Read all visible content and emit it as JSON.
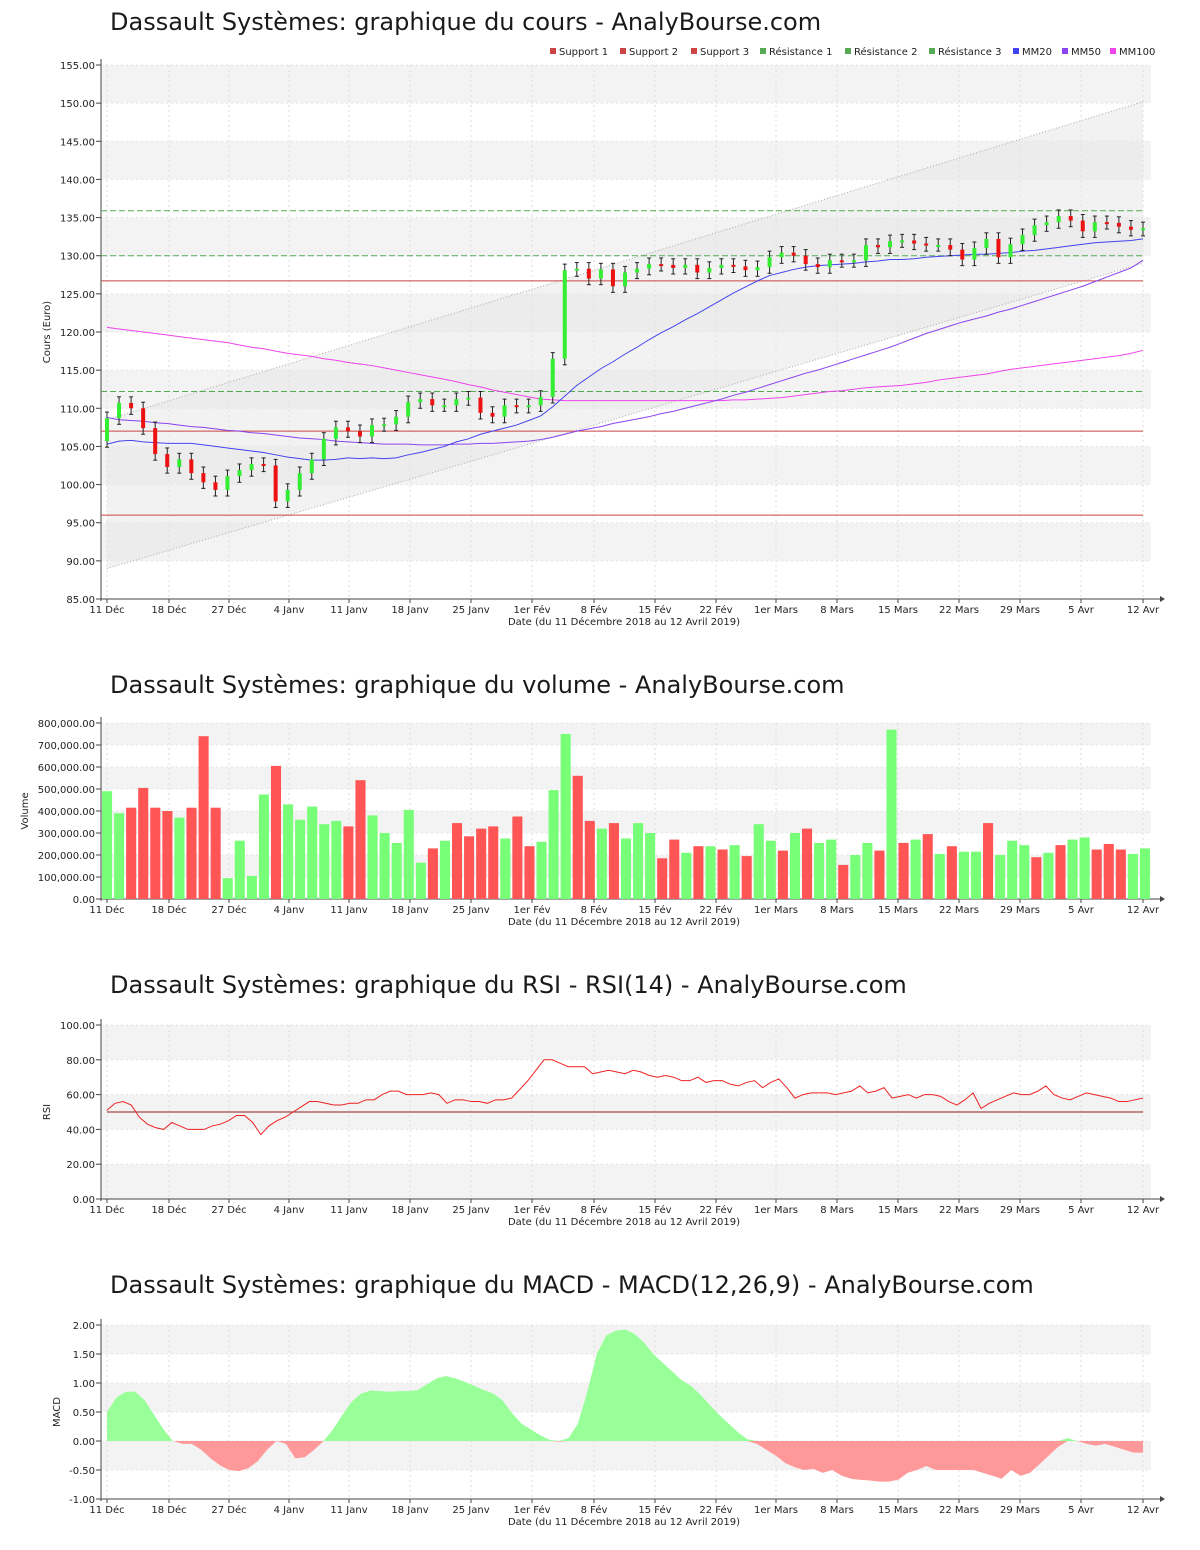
{
  "x_ticks": [
    "11 Déc",
    "18 Déc",
    "27 Déc",
    "4 Janv",
    "11 Janv",
    "18 Janv",
    "25 Janv",
    "1er Fév",
    "8 Fév",
    "15 Fév",
    "22 Fév",
    "1er Mars",
    "8 Mars",
    "15 Mars",
    "22 Mars",
    "29 Mars",
    "5 Avr",
    "12 Avr"
  ],
  "xlabel": "Date (du 11 Décembre 2018 au 12 Avril 2019)",
  "colors": {
    "up": "#33ee33",
    "down": "#ee1111",
    "vol_up": "#77ff77",
    "vol_down": "#ff5555",
    "support": "#cc4444",
    "resistance": "#55aa55",
    "mm20": "#4444ee",
    "mm50": "#8844ee",
    "mm100": "#ee44ee",
    "rsi": "#ee2222",
    "macd_pos": "#99ff99",
    "macd_neg": "#ff9999"
  },
  "chart_data": [
    {
      "type": "candlestick",
      "title": "Dassault Systèmes: graphique du cours - AnalyBourse.com",
      "ylabel": "Cours (Euro)",
      "ylim": [
        85,
        155
      ],
      "y_ticks": [
        "155.00",
        "150.00",
        "145.00",
        "140.00",
        "135.00",
        "130.00",
        "125.00",
        "120.00",
        "115.00",
        "110.00",
        "105.00",
        "100.00",
        "95.00",
        "90.00",
        "85.00"
      ],
      "legend": [
        "Support 1",
        "Support 2",
        "Support 3",
        "Résistance 1",
        "Résistance 2",
        "Résistance 3",
        "MM20",
        "MM50",
        "MM100"
      ],
      "legend_position": "top-right",
      "levels": {
        "support1": 126.7,
        "support2": 107.0,
        "support3": 96.0,
        "resistance1": 112.2,
        "resistance2": 130.0,
        "resistance3": 135.9
      },
      "channel": {
        "upper": [
          108.5,
          150.2
        ],
        "lower": [
          89.0,
          129.0
        ]
      },
      "close": [
        108.7,
        110.7,
        110.0,
        107.4,
        104.0,
        102.3,
        103.3,
        101.5,
        100.3,
        99.3,
        101.1,
        101.9,
        102.7,
        102.5,
        97.8,
        99.3,
        101.5,
        103.3,
        106.0,
        107.5,
        107.0,
        106.3,
        107.8,
        107.9,
        108.9,
        110.8,
        111.2,
        110.4,
        110.4,
        111.2,
        111.4,
        109.4,
        108.9,
        110.4,
        110.2,
        110.4,
        111.5,
        116.5,
        128.1,
        128.3,
        127.0,
        128.2,
        126.0,
        127.8,
        128.3,
        128.9,
        128.8,
        128.4,
        128.8,
        127.8,
        128.4,
        128.8,
        128.6,
        128.1,
        128.5,
        129.8,
        130.4,
        130.0,
        128.9,
        128.5,
        129.4,
        129.3,
        129.4,
        131.4,
        131.1,
        131.9,
        132.0,
        131.6,
        131.4,
        131.4,
        130.8,
        129.5,
        131.0,
        132.2,
        129.8,
        131.5,
        132.7,
        134.0,
        134.4,
        135.2,
        134.6,
        133.2,
        134.4,
        134.3,
        133.8,
        133.4,
        133.6
      ],
      "mm20": [
        105.3,
        105.7,
        105.8,
        105.6,
        105.5,
        105.4,
        105.4,
        105.4,
        105.2,
        105.0,
        104.8,
        104.6,
        104.4,
        104.2,
        103.9,
        103.6,
        103.4,
        103.2,
        103.2,
        103.3,
        103.5,
        103.4,
        103.5,
        103.4,
        103.5,
        103.9,
        104.2,
        104.6,
        105.0,
        105.6,
        106.0,
        106.6,
        107.0,
        107.4,
        107.8,
        108.4,
        109.0,
        110.2,
        111.6,
        113.0,
        114.1,
        115.2,
        116.1,
        117.1,
        118.0,
        119.0,
        119.9,
        120.7,
        121.6,
        122.4,
        123.3,
        124.2,
        125.1,
        125.9,
        126.7,
        127.4,
        127.8,
        128.2,
        128.5,
        128.7,
        128.8,
        128.9,
        129.0,
        129.2,
        129.3,
        129.5,
        129.5,
        129.6,
        129.8,
        129.9,
        130.0,
        130.1,
        130.2,
        130.2,
        130.3,
        130.4,
        130.6,
        130.7,
        130.9,
        131.1,
        131.3,
        131.5,
        131.7,
        131.8,
        131.9,
        132.0,
        132.2
      ],
      "mm50": [
        108.8,
        108.5,
        108.4,
        108.3,
        108.1,
        108.0,
        107.8,
        107.6,
        107.5,
        107.3,
        107.1,
        107.0,
        106.8,
        106.7,
        106.5,
        106.3,
        106.1,
        106.0,
        105.9,
        105.7,
        105.6,
        105.5,
        105.4,
        105.3,
        105.3,
        105.3,
        105.2,
        105.2,
        105.2,
        105.3,
        105.3,
        105.4,
        105.4,
        105.5,
        105.6,
        105.7,
        105.9,
        106.2,
        106.6,
        107.0,
        107.3,
        107.6,
        108.0,
        108.3,
        108.6,
        108.9,
        109.3,
        109.6,
        110.0,
        110.4,
        110.8,
        111.2,
        111.7,
        112.1,
        112.6,
        113.1,
        113.6,
        114.1,
        114.6,
        115.0,
        115.5,
        116.0,
        116.5,
        117.0,
        117.5,
        118.0,
        118.6,
        119.2,
        119.8,
        120.3,
        120.8,
        121.3,
        121.7,
        122.1,
        122.6,
        123.0,
        123.5,
        124.0,
        124.5,
        125.0,
        125.5,
        126.0,
        126.6,
        127.2,
        127.8,
        128.4,
        129.4
      ],
      "mm100": [
        120.6,
        120.4,
        120.2,
        120.0,
        119.8,
        119.6,
        119.4,
        119.2,
        119.0,
        118.8,
        118.6,
        118.3,
        118.0,
        117.8,
        117.5,
        117.2,
        117.0,
        116.8,
        116.5,
        116.3,
        116.0,
        115.8,
        115.6,
        115.3,
        115.0,
        114.7,
        114.4,
        114.1,
        113.8,
        113.5,
        113.1,
        112.8,
        112.4,
        112.1,
        111.8,
        111.5,
        111.2,
        111.1,
        111.0,
        111.0,
        111.0,
        111.0,
        111.0,
        111.0,
        111.0,
        111.0,
        111.0,
        111.0,
        111.0,
        111.0,
        111.0,
        111.0,
        111.1,
        111.1,
        111.2,
        111.3,
        111.4,
        111.6,
        111.8,
        112.0,
        112.2,
        112.3,
        112.5,
        112.7,
        112.8,
        112.9,
        113.0,
        113.2,
        113.4,
        113.7,
        113.9,
        114.1,
        114.3,
        114.5,
        114.8,
        115.1,
        115.3,
        115.5,
        115.7,
        115.9,
        116.1,
        116.3,
        116.5,
        116.7,
        116.9,
        117.2,
        117.6
      ]
    },
    {
      "type": "bar",
      "title": "Dassault Systèmes: graphique du volume - AnalyBourse.com",
      "ylabel": "Volume",
      "ylim": [
        0,
        800000
      ],
      "y_ticks": [
        "800,000.00",
        "700,000.00",
        "600,000.00",
        "500,000.00",
        "400,000.00",
        "300,000.00",
        "200,000.00",
        "100,000.00",
        "0.00"
      ],
      "values": [
        490000,
        390000,
        415000,
        505000,
        415000,
        400000,
        370000,
        415000,
        740000,
        415000,
        95000,
        265000,
        105000,
        475000,
        605000,
        430000,
        360000,
        420000,
        340000,
        355000,
        330000,
        540000,
        380000,
        300000,
        255000,
        405000,
        165000,
        230000,
        265000,
        345000,
        285000,
        320000,
        330000,
        275000,
        375000,
        240000,
        260000,
        495000,
        750000,
        560000,
        355000,
        320000,
        345000,
        275000,
        345000,
        300000,
        185000,
        270000,
        210000,
        240000,
        240000,
        225000,
        245000,
        195000,
        340000,
        265000,
        220000,
        300000,
        320000,
        255000,
        270000,
        155000,
        200000,
        255000,
        220000,
        770000,
        255000,
        270000,
        295000,
        205000,
        240000,
        215000,
        215000,
        345000,
        200000,
        265000,
        245000,
        190000,
        210000,
        245000,
        270000,
        280000,
        225000,
        250000,
        225000,
        205000,
        230000
      ],
      "up": [
        1,
        1,
        0,
        0,
        0,
        0,
        1,
        0,
        0,
        0,
        1,
        1,
        1,
        1,
        0,
        1,
        1,
        1,
        1,
        1,
        0,
        0,
        1,
        1,
        1,
        1,
        1,
        0,
        1,
        0,
        0,
        0,
        0,
        1,
        0,
        0,
        1,
        1,
        1,
        0,
        0,
        1,
        0,
        1,
        1,
        1,
        0,
        0,
        1,
        0,
        1,
        0,
        1,
        0,
        1,
        1,
        0,
        1,
        0,
        1,
        1,
        0,
        1,
        1,
        0,
        1,
        0,
        1,
        0,
        1,
        0,
        1,
        1,
        0,
        1,
        1,
        1,
        0,
        1,
        0,
        1,
        1,
        0,
        0,
        0,
        1,
        1
      ]
    },
    {
      "type": "line",
      "title": "Dassault Systèmes: graphique du RSI - RSI(14) - AnalyBourse.com",
      "ylabel": "RSI",
      "ylim": [
        0,
        100
      ],
      "y_ticks": [
        "100.00",
        "80.00",
        "60.00",
        "40.00",
        "20.00",
        "0.00"
      ],
      "reference_line": 50,
      "values": [
        51,
        55,
        56,
        54,
        47,
        43,
        41,
        40,
        44,
        42,
        40,
        40,
        40,
        42,
        43,
        45,
        48,
        48,
        44,
        37,
        42,
        45,
        47,
        50,
        53,
        56,
        56,
        55,
        54,
        54,
        55,
        55,
        57,
        57,
        60,
        62,
        62,
        60,
        60,
        60,
        61,
        60,
        55,
        57,
        57,
        56,
        56,
        55,
        57,
        57,
        58,
        63,
        68,
        74,
        80,
        80,
        78,
        76,
        76,
        76,
        72,
        73,
        74,
        73,
        72,
        74,
        73,
        71,
        70,
        71,
        70,
        68,
        68,
        70,
        67,
        68,
        68,
        66,
        65,
        67,
        68,
        64,
        67,
        69,
        64,
        58,
        60,
        61,
        61,
        61,
        60,
        61,
        62,
        65,
        61,
        62,
        64,
        58,
        59,
        60,
        58,
        60,
        60,
        59,
        56,
        54,
        57,
        61,
        52,
        55,
        57,
        59,
        61,
        60,
        60,
        62,
        65,
        60,
        58,
        57,
        59,
        61,
        60,
        59,
        58,
        56,
        56,
        57,
        58
      ],
      "series_name": ""
    },
    {
      "type": "area",
      "title": "Dassault Systèmes: graphique du MACD - MACD(12,26,9) - AnalyBourse.com",
      "ylabel": "MACD",
      "ylim": [
        -1,
        2
      ],
      "y_ticks": [
        "2.00",
        "1.50",
        "1.00",
        "0.50",
        "0.00",
        "-0.50",
        "-1.00"
      ],
      "values": [
        0.5,
        0.75,
        0.85,
        0.85,
        0.7,
        0.45,
        0.2,
        0.0,
        -0.05,
        -0.05,
        -0.15,
        -0.3,
        -0.42,
        -0.5,
        -0.52,
        -0.47,
        -0.35,
        -0.15,
        0.0,
        -0.05,
        -0.3,
        -0.28,
        -0.15,
        0.0,
        0.2,
        0.45,
        0.68,
        0.82,
        0.87,
        0.86,
        0.85,
        0.86,
        0.86,
        0.88,
        0.98,
        1.08,
        1.12,
        1.08,
        1.02,
        0.95,
        0.88,
        0.82,
        0.7,
        0.48,
        0.3,
        0.2,
        0.1,
        0.02,
        -0.01,
        0.05,
        0.3,
        0.85,
        1.5,
        1.82,
        1.9,
        1.92,
        1.85,
        1.7,
        1.5,
        1.35,
        1.2,
        1.05,
        0.95,
        0.8,
        0.62,
        0.45,
        0.3,
        0.15,
        0.03,
        -0.05,
        -0.15,
        -0.25,
        -0.38,
        -0.45,
        -0.5,
        -0.48,
        -0.55,
        -0.5,
        -0.6,
        -0.65,
        -0.67,
        -0.68,
        -0.7,
        -0.7,
        -0.67,
        -0.55,
        -0.5,
        -0.43,
        -0.5,
        -0.5,
        -0.5,
        -0.5,
        -0.5,
        -0.55,
        -0.6,
        -0.65,
        -0.5,
        -0.6,
        -0.55,
        -0.4,
        -0.25,
        -0.1,
        0.05,
        0.0,
        -0.05,
        -0.08,
        -0.05,
        -0.1,
        -0.15,
        -0.2,
        -0.2
      ]
    }
  ]
}
